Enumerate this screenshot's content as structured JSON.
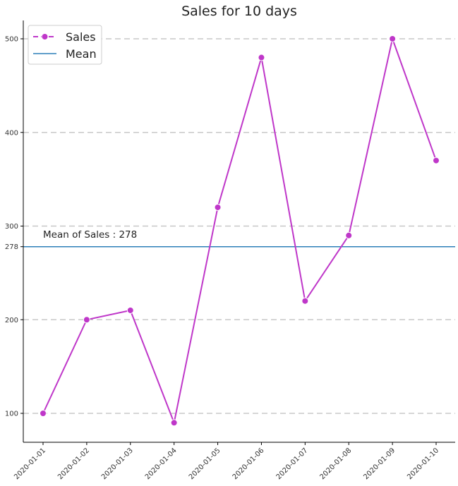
{
  "chart_data": {
    "type": "line",
    "title": "Sales for 10 days",
    "xlabel": "",
    "ylabel": "",
    "x": [
      "2020-01-01",
      "2020-01-02",
      "2020-01-03",
      "2020-01-04",
      "2020-01-05",
      "2020-01-06",
      "2020-01-07",
      "2020-01-08",
      "2020-01-09",
      "2020-01-10"
    ],
    "series": [
      {
        "name": "Sales",
        "values": [
          100,
          200,
          210,
          90,
          320,
          480,
          220,
          290,
          500,
          370
        ],
        "color": "#bf37c9",
        "linestyle": "solid",
        "marker": "circle"
      }
    ],
    "mean_line": {
      "name": "Mean",
      "value": 278,
      "color": "#2c7fb8"
    },
    "annotation": "Mean of Sales : 278",
    "yticks": [
      100,
      200,
      278,
      300,
      400,
      500
    ],
    "ylim": [
      70,
      520
    ],
    "grid": "horizontal dashed at 100, 200, 300, 400, 500",
    "legend": {
      "placement": "top-left",
      "entries": [
        "Sales",
        "Mean"
      ]
    },
    "spines": "left and bottom only"
  }
}
